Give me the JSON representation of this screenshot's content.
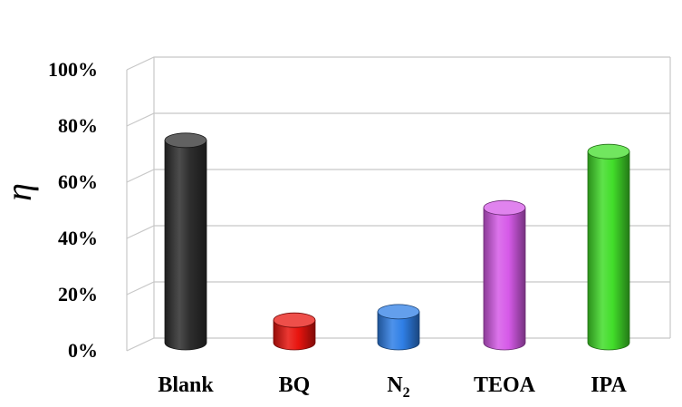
{
  "chart_data": {
    "type": "bar",
    "categories": [
      "Blank",
      "BQ",
      "N",
      "TEOA",
      "IPA"
    ],
    "category_subscripts": [
      "",
      "",
      "2",
      "",
      ""
    ],
    "values": [
      72,
      8,
      11,
      48,
      68
    ],
    "colors": [
      "#2e2e2e",
      "#e8140e",
      "#2f7fe6",
      "#d65ae8",
      "#42dd2a"
    ],
    "ylabel": "η",
    "ylim": [
      0,
      100
    ],
    "yticks": [
      0,
      20,
      40,
      60,
      80,
      100
    ],
    "yticklabels": [
      "0%",
      "20%",
      "40%",
      "60%",
      "80%",
      "100%"
    ],
    "grid": true,
    "style": "3d-cylinder"
  }
}
